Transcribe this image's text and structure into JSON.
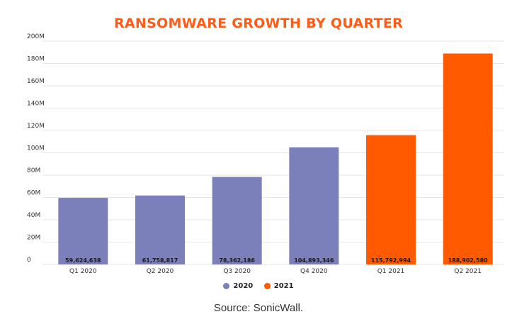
{
  "chart_data": {
    "type": "bar",
    "title": "RANSOMWARE GROWTH BY QUARTER",
    "categories": [
      "Q1 2020",
      "Q2 2020",
      "Q3 2020",
      "Q4 2020",
      "Q1 2021",
      "Q2 2021"
    ],
    "values": [
      59624638,
      61758817,
      78362186,
      104893346,
      115792994,
      188902580
    ],
    "value_labels": [
      "59,624,638",
      "61,758,817",
      "78,362,186",
      "104,893,346",
      "115,792,994",
      "188,902,580"
    ],
    "bar_series": [
      "2020",
      "2020",
      "2020",
      "2020",
      "2021",
      "2021"
    ],
    "series": [
      {
        "name": "2020",
        "color": "#7b7fba"
      },
      {
        "name": "2021",
        "color": "#ff5a00"
      }
    ],
    "yticks": [
      0,
      20000000,
      40000000,
      60000000,
      80000000,
      100000000,
      120000000,
      140000000,
      160000000,
      180000000,
      200000000
    ],
    "ytick_labels": [
      "0",
      "20M",
      "40M",
      "60M",
      "80M",
      "100M",
      "120M",
      "140M",
      "160M",
      "180M",
      "200M"
    ],
    "ylim": [
      0,
      200000000
    ],
    "xlabel": "",
    "ylabel": "",
    "grid": true,
    "legend_position": "bottom-center",
    "title_color": "#ff5a16"
  },
  "footer": {
    "source": "Source: SonicWall."
  }
}
